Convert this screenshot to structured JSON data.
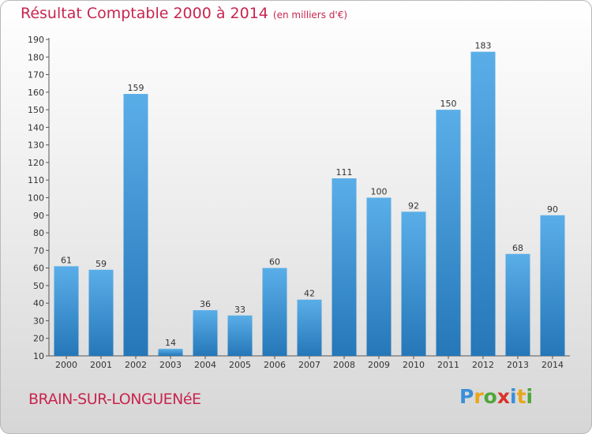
{
  "header": {
    "title": "Résultat Comptable 2000 à 2014",
    "subtitle": "(en milliers d'€)"
  },
  "footer": {
    "place": "BRAIN-SUR-LONGUENéE",
    "logo_letters": [
      "P",
      "r",
      "o",
      "x",
      "i",
      "t",
      "i"
    ],
    "logo_colors": [
      "#3a8fd9",
      "#e8a61a",
      "#4fa63b",
      "#d9322e",
      "#3a8fd9",
      "#e8a61a",
      "#4fa63b"
    ]
  },
  "colors": {
    "bar_light": "#5aaee8",
    "bar_dark": "#2577b8",
    "accent": "#c8254f"
  },
  "chart_data": {
    "type": "bar",
    "title": "Résultat Comptable 2000 à 2014",
    "ylabel": "en milliers d'€",
    "xlabel": "",
    "categories": [
      "2000",
      "2001",
      "2002",
      "2003",
      "2004",
      "2005",
      "2006",
      "2007",
      "2008",
      "2009",
      "2010",
      "2011",
      "2012",
      "2013",
      "2014"
    ],
    "values": [
      61,
      59,
      159,
      14,
      36,
      33,
      60,
      42,
      111,
      100,
      92,
      150,
      183,
      68,
      90
    ],
    "ylim": [
      10,
      190
    ],
    "yticks": [
      10,
      20,
      30,
      40,
      50,
      60,
      70,
      80,
      90,
      100,
      110,
      120,
      130,
      140,
      150,
      160,
      170,
      180,
      190
    ],
    "grid": false
  }
}
